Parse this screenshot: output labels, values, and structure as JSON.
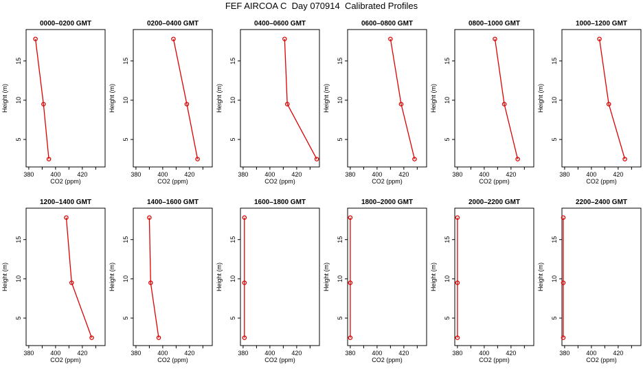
{
  "title": "FEF AIRCOA C  Day 070914  Calibrated Profiles",
  "colors": {
    "series": "#dd0000",
    "axis": "#000000",
    "background": "#ffffff"
  },
  "chart_data": [
    {
      "type": "line",
      "title": "0000–0200 GMT",
      "x": [
        385,
        391,
        395
      ],
      "y": [
        17.8,
        9.5,
        2.5
      ],
      "xlim": [
        378,
        437
      ],
      "ylim": [
        1.5,
        19
      ],
      "xticks": [
        380,
        400,
        420
      ],
      "yticks": [
        5,
        10,
        15
      ],
      "xlabel": "CO2 (ppm)",
      "ylabel": "Height (m)"
    },
    {
      "type": "line",
      "title": "0200–0400 GMT",
      "x": [
        408,
        418,
        426
      ],
      "y": [
        17.8,
        9.5,
        2.5
      ],
      "xlim": [
        378,
        437
      ],
      "ylim": [
        1.5,
        19
      ],
      "xticks": [
        380,
        400,
        420
      ],
      "yticks": [
        5,
        10,
        15
      ],
      "xlabel": "CO2 (ppm)",
      "ylabel": "Height (m)"
    },
    {
      "type": "line",
      "title": "0400–0600 GMT",
      "x": [
        411,
        413,
        435
      ],
      "y": [
        17.8,
        9.5,
        2.5
      ],
      "xlim": [
        378,
        437
      ],
      "ylim": [
        1.5,
        19
      ],
      "xticks": [
        380,
        400,
        420
      ],
      "yticks": [
        5,
        10,
        15
      ],
      "xlabel": "CO2 (ppm)",
      "ylabel": "Height (m)"
    },
    {
      "type": "line",
      "title": "0600–0800 GMT",
      "x": [
        410,
        418,
        428
      ],
      "y": [
        17.8,
        9.5,
        2.5
      ],
      "xlim": [
        378,
        437
      ],
      "ylim": [
        1.5,
        19
      ],
      "xticks": [
        380,
        400,
        420
      ],
      "yticks": [
        5,
        10,
        15
      ],
      "xlabel": "CO2 (ppm)",
      "ylabel": "Height (m)"
    },
    {
      "type": "line",
      "title": "0800–1000 GMT",
      "x": [
        408,
        415,
        425
      ],
      "y": [
        17.8,
        9.5,
        2.5
      ],
      "xlim": [
        378,
        437
      ],
      "ylim": [
        1.5,
        19
      ],
      "xticks": [
        380,
        400,
        420
      ],
      "yticks": [
        5,
        10,
        15
      ],
      "xlabel": "CO2 (ppm)",
      "ylabel": "Height (m)"
    },
    {
      "type": "line",
      "title": "1000–1200 GMT",
      "x": [
        406,
        413,
        425
      ],
      "y": [
        17.8,
        9.5,
        2.5
      ],
      "xlim": [
        378,
        437
      ],
      "ylim": [
        1.5,
        19
      ],
      "xticks": [
        380,
        400,
        420
      ],
      "yticks": [
        5,
        10,
        15
      ],
      "xlabel": "CO2 (ppm)",
      "ylabel": "Height (m)"
    },
    {
      "type": "line",
      "title": "1200–1400 GMT",
      "x": [
        408,
        412,
        427
      ],
      "y": [
        17.8,
        9.5,
        2.5
      ],
      "xlim": [
        378,
        437
      ],
      "ylim": [
        1.5,
        19
      ],
      "xticks": [
        380,
        400,
        420
      ],
      "yticks": [
        5,
        10,
        15
      ],
      "xlabel": "CO2 (ppm)",
      "ylabel": "Height (m)"
    },
    {
      "type": "line",
      "title": "1400–1600 GMT",
      "x": [
        390,
        391,
        397
      ],
      "y": [
        17.8,
        9.5,
        2.5
      ],
      "xlim": [
        378,
        437
      ],
      "ylim": [
        1.5,
        19
      ],
      "xticks": [
        380,
        400,
        420
      ],
      "yticks": [
        5,
        10,
        15
      ],
      "xlabel": "CO2 (ppm)",
      "ylabel": "Height (m)"
    },
    {
      "type": "line",
      "title": "1600–1800 GMT",
      "x": [
        381,
        381,
        381
      ],
      "y": [
        17.8,
        9.5,
        2.5
      ],
      "xlim": [
        378,
        437
      ],
      "ylim": [
        1.5,
        19
      ],
      "xticks": [
        380,
        400,
        420
      ],
      "yticks": [
        5,
        10,
        15
      ],
      "xlabel": "CO2 (ppm)",
      "ylabel": "Height (m)"
    },
    {
      "type": "line",
      "title": "1800–2000 GMT",
      "x": [
        380,
        380,
        380
      ],
      "y": [
        17.8,
        9.5,
        2.5
      ],
      "xlim": [
        378,
        437
      ],
      "ylim": [
        1.5,
        19
      ],
      "xticks": [
        380,
        400,
        420
      ],
      "yticks": [
        5,
        10,
        15
      ],
      "xlabel": "CO2 (ppm)",
      "ylabel": "Height (m)"
    },
    {
      "type": "line",
      "title": "2000–2200 GMT",
      "x": [
        380,
        380,
        380
      ],
      "y": [
        17.8,
        9.5,
        2.5
      ],
      "xlim": [
        378,
        437
      ],
      "ylim": [
        1.5,
        19
      ],
      "xticks": [
        380,
        400,
        420
      ],
      "yticks": [
        5,
        10,
        15
      ],
      "xlabel": "CO2 (ppm)",
      "ylabel": "Height (m)"
    },
    {
      "type": "line",
      "title": "2200–2400 GMT",
      "x": [
        379,
        379,
        379
      ],
      "y": [
        17.8,
        9.5,
        2.5
      ],
      "xlim": [
        378,
        437
      ],
      "ylim": [
        1.5,
        19
      ],
      "xticks": [
        380,
        400,
        420
      ],
      "yticks": [
        5,
        10,
        15
      ],
      "xlabel": "CO2 (ppm)",
      "ylabel": "Height (m)"
    }
  ]
}
